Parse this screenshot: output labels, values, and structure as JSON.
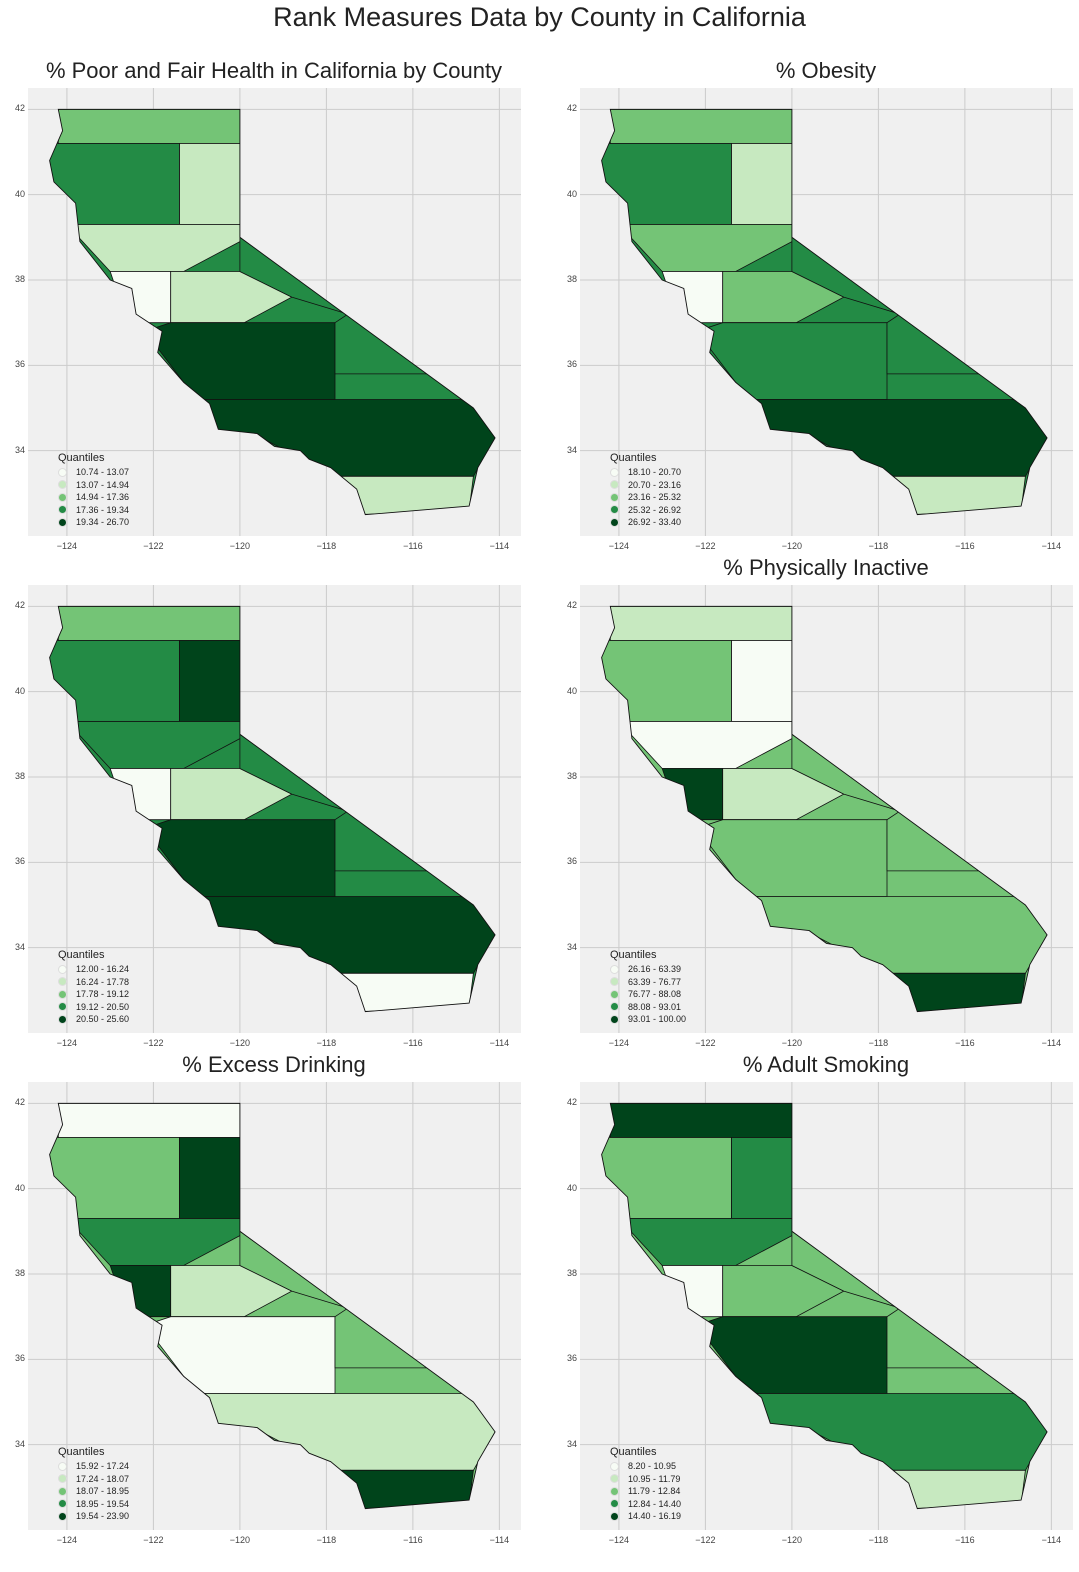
{
  "suptitle": "Rank Measures Data by County in California",
  "axes": {
    "x_ticks": [
      "−124",
      "−122",
      "−120",
      "−118",
      "−116",
      "−114"
    ],
    "y_ticks": [
      "42",
      "40",
      "38",
      "36",
      "34"
    ],
    "x_values": [
      -124,
      -122,
      -120,
      -118,
      -116,
      -114
    ],
    "y_values": [
      42,
      40,
      38,
      36,
      34
    ],
    "xlim": [
      -124.9,
      -113.5
    ],
    "ylim": [
      32.0,
      42.5
    ]
  },
  "colors": [
    "#f7fcf5",
    "#c7e9c0",
    "#74c476",
    "#238b45",
    "#00441b"
  ],
  "legend_title": "Quantiles",
  "panels": [
    {
      "title": "% Poor and Fair Health in California by County",
      "bins": [
        "10.74 - 13.07",
        "13.07 - 14.94",
        "14.94 - 17.36",
        "17.36 - 19.34",
        "19.34 - 26.70"
      ],
      "fill": {
        "default": 3,
        "north": 2,
        "ne": 1,
        "central_n": 1,
        "central_s": 4,
        "bay": 0,
        "foothill": 1,
        "south": 4,
        "socal": 1
      }
    },
    {
      "title": "% Obesity",
      "bins": [
        "18.10 - 20.70",
        "20.70 - 23.16",
        "23.16 - 25.32",
        "25.32 - 26.92",
        "26.92 - 33.40"
      ],
      "fill": {
        "default": 3,
        "north": 2,
        "ne": 1,
        "central_n": 2,
        "central_s": 3,
        "bay": 0,
        "foothill": 2,
        "south": 4,
        "socal": 1
      }
    },
    {
      "title": "",
      "bins": [
        "12.00 - 16.24",
        "16.24 - 17.78",
        "17.78 - 19.12",
        "19.12 - 20.50",
        "20.50 - 25.60"
      ],
      "fill": {
        "default": 3,
        "north": 2,
        "ne": 4,
        "central_n": 3,
        "central_s": 4,
        "bay": 0,
        "foothill": 1,
        "south": 4,
        "socal": 0
      }
    },
    {
      "title": "% Physically Inactive",
      "bins": [
        "26.16 - 63.39",
        "63.39 - 76.77",
        "76.77 - 88.08",
        "88.08 - 93.01",
        "93.01 - 100.00"
      ],
      "fill": {
        "default": 2,
        "north": 1,
        "ne": 0,
        "central_n": 0,
        "central_s": 2,
        "bay": 4,
        "foothill": 1,
        "south": 2,
        "socal": 4
      }
    },
    {
      "title": "% Excess Drinking",
      "bins": [
        "15.92 - 17.24",
        "17.24 - 18.07",
        "18.07 - 18.95",
        "18.95 - 19.54",
        "19.54 - 23.90"
      ],
      "fill": {
        "default": 2,
        "north": 0,
        "ne": 4,
        "central_n": 3,
        "central_s": 0,
        "bay": 4,
        "foothill": 1,
        "south": 1,
        "socal": 4
      }
    },
    {
      "title": "% Adult Smoking",
      "bins": [
        "8.20 - 10.95",
        "10.95 - 11.79",
        "11.79 - 12.84",
        "12.84 - 14.40",
        "14.40 - 16.19"
      ],
      "fill": {
        "default": 2,
        "north": 4,
        "ne": 3,
        "central_n": 3,
        "central_s": 4,
        "bay": 0,
        "foothill": 2,
        "south": 3,
        "socal": 1
      }
    }
  ]
}
